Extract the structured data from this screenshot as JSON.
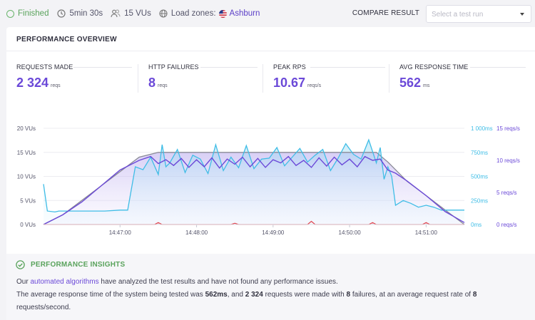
{
  "topbar": {
    "status": "Finished",
    "duration": "5min 30s",
    "vus": "15 VUs",
    "load_zones_label": "Load zones:",
    "load_zone": "Ashburn",
    "compare_label": "COMPARE RESULT",
    "select_placeholder": "Select a test run"
  },
  "overview": {
    "title": "PERFORMANCE OVERVIEW",
    "stats": [
      {
        "label": "REQUESTS MADE",
        "value": "2 324",
        "unit": "reqs"
      },
      {
        "label": "HTTP FAILURES",
        "value": "8",
        "unit": "reqs"
      },
      {
        "label": "PEAK RPS",
        "value": "10.67",
        "unit": "reqs/s"
      },
      {
        "label": "AVG RESPONSE TIME",
        "value": "562",
        "unit": "ms"
      }
    ]
  },
  "colors": {
    "vus": "#8a8a96",
    "response_time": "#3fbde6",
    "rps": "#6b49d8",
    "failures": "#e0444e",
    "accent": "#6b49d8",
    "success": "#5aa35c"
  },
  "chart_data": {
    "type": "line",
    "x_ticks": [
      "14:47:00",
      "14:48:00",
      "14:49:00",
      "14:50:00",
      "14:51:00"
    ],
    "x_tick_minutes": [
      1.0,
      2.0,
      3.0,
      4.0,
      5.0
    ],
    "xlim": [
      0.0,
      5.5
    ],
    "y_left": {
      "ticks": [
        "0 VUs",
        "5 VUs",
        "10 VUs",
        "15 VUs",
        "20 VUs"
      ],
      "ylim": [
        0,
        20
      ]
    },
    "y_right_ms": {
      "ticks": [
        "0ms",
        "250ms",
        "500ms",
        "750ms",
        "1 000ms"
      ],
      "ylim": [
        0,
        1000
      ]
    },
    "y_right_rps": {
      "ticks": [
        "0 reqs/s",
        "5 reqs/s",
        "10 reqs/s",
        "15 reqs/s"
      ],
      "ylim": [
        0,
        15
      ]
    },
    "series": [
      {
        "name": "VUs",
        "axis": "left",
        "x": [
          0.0,
          0.25,
          0.5,
          0.75,
          1.0,
          1.25,
          1.5,
          1.75,
          2.0,
          3.0,
          4.0,
          4.3,
          4.35,
          4.5,
          4.75,
          5.0,
          5.25,
          5.5
        ],
        "y": [
          0,
          2,
          5,
          8,
          11,
          14,
          15,
          15,
          15,
          15,
          15,
          15,
          15,
          13,
          9,
          6,
          3,
          0
        ]
      },
      {
        "name": "Response time",
        "axis": "right_ms",
        "x": [
          0.0,
          0.05,
          0.15,
          0.2,
          0.5,
          0.8,
          1.0,
          1.1,
          1.2,
          1.3,
          1.4,
          1.5,
          1.55,
          1.6,
          1.65,
          1.75,
          1.85,
          1.95,
          2.05,
          2.15,
          2.25,
          2.35,
          2.45,
          2.55,
          2.65,
          2.75,
          2.85,
          2.95,
          3.05,
          3.15,
          3.25,
          3.35,
          3.45,
          3.55,
          3.65,
          3.75,
          3.85,
          3.95,
          4.05,
          4.15,
          4.25,
          4.35,
          4.4,
          4.45,
          4.5,
          4.55,
          4.6,
          4.7,
          4.8,
          4.9,
          5.0,
          5.1,
          5.2,
          5.3,
          5.4,
          5.5
        ],
        "y": [
          420,
          140,
          130,
          140,
          140,
          140,
          150,
          150,
          600,
          570,
          700,
          520,
          830,
          600,
          640,
          780,
          540,
          720,
          680,
          530,
          830,
          560,
          700,
          590,
          820,
          580,
          680,
          690,
          800,
          610,
          700,
          790,
          650,
          720,
          780,
          560,
          690,
          840,
          730,
          680,
          880,
          640,
          800,
          470,
          600,
          500,
          200,
          250,
          220,
          180,
          200,
          180,
          150,
          150,
          150,
          150
        ]
      },
      {
        "name": "RPS",
        "axis": "right_rps",
        "x": [
          0.0,
          0.25,
          0.5,
          0.75,
          1.0,
          1.25,
          1.4,
          1.5,
          1.6,
          1.7,
          1.8,
          1.9,
          2.0,
          2.1,
          2.2,
          2.3,
          2.4,
          2.5,
          2.6,
          2.7,
          2.8,
          2.9,
          3.0,
          3.1,
          3.2,
          3.3,
          3.4,
          3.5,
          3.6,
          3.7,
          3.8,
          3.9,
          4.0,
          4.1,
          4.2,
          4.3,
          4.4,
          4.5,
          4.6,
          4.75,
          5.0,
          5.25,
          5.5
        ],
        "y": [
          0,
          1.5,
          3.5,
          6,
          8.5,
          10,
          10.6,
          9.5,
          10.1,
          9.2,
          10.3,
          8.9,
          10.1,
          9.0,
          10.4,
          8.8,
          10.2,
          9.4,
          10.5,
          9.0,
          10.3,
          8.9,
          10.1,
          9.6,
          10.6,
          9.2,
          10.0,
          8.9,
          10.4,
          9.1,
          10.5,
          9.3,
          10.2,
          9.0,
          10.6,
          10.0,
          10.2,
          8.5,
          8.0,
          6.8,
          4.5,
          2.0,
          0.3
        ]
      },
      {
        "name": "Failures",
        "axis": "right_rps",
        "x": [
          0.0,
          0.25,
          0.5,
          1.0,
          1.45,
          1.5,
          1.55,
          2.0,
          2.45,
          2.5,
          2.55,
          3.0,
          3.45,
          3.5,
          3.55,
          4.0,
          4.25,
          4.3,
          4.35,
          4.75,
          4.95,
          5.0,
          5.05,
          5.5
        ],
        "y": [
          0,
          0,
          0,
          0,
          0,
          0.3,
          0,
          0,
          0,
          0.2,
          0,
          0,
          0,
          0.5,
          0,
          0,
          0,
          0.3,
          0,
          0,
          0,
          0.3,
          0,
          0
        ]
      }
    ]
  },
  "insights": {
    "title": "PERFORMANCE INSIGHTS",
    "line1_pre": "Our ",
    "line1_link": "automated algorithms",
    "line1_post": " have analyzed the test results and have not found any performance issues.",
    "line2_a": "The average response time of the system being tested was ",
    "line2_b": "562ms",
    "line2_c": ", and ",
    "line2_d": "2 324",
    "line2_e": " requests were made with ",
    "line2_f": "8",
    "line2_g": " failures, at an average request rate of ",
    "line2_h": "8",
    "line3": "requests/second."
  }
}
